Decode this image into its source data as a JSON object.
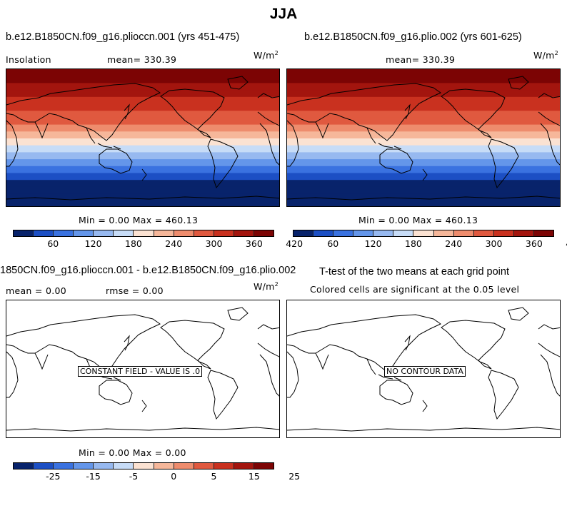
{
  "main_title": "JJA",
  "panels": [
    {
      "title": "b.e12.B1850CN.f09_g16.plioccn.001 (yrs 451-475)",
      "left_label": "Insolation",
      "mean_label": "mean=  330.39",
      "units_base": "W/m",
      "units_exp": "2",
      "stats": "Min =   0.00 Max = 460.13"
    },
    {
      "title": "b.e12.B1850CN.f09_g16.plio.002 (yrs 601-625)",
      "mean_label": "mean=  330.39",
      "units_base": "W/m",
      "units_exp": "2",
      "stats": "Min =   0.00 Max = 460.13"
    },
    {
      "title": "1850CN.f09_g16.plioccn.001 - b.e12.B1850CN.f09_g16.plio.002",
      "mean_label": "mean =   0.00",
      "rmse_label": "rmse =   0.00",
      "units_base": "W/m",
      "units_exp": "2",
      "box_text": "CONSTANT FIELD - VALUE IS .0",
      "stats": "Min =   0.00 Max =   0.00"
    },
    {
      "title": "T-test of the two means at each grid point",
      "subtitle": "Colored cells are significant at the 0.05 level",
      "box_text": "NO CONTOUR DATA"
    }
  ],
  "colorbar_colors": [
    "#08236b",
    "#1c4fc4",
    "#3a72e0",
    "#6496ea",
    "#97b9f0",
    "#c7dcf7",
    "#fbe2d2",
    "#f6b79a",
    "#ee8c6d",
    "#e0593f",
    "#c9311f",
    "#a3150e",
    "#7c0404"
  ],
  "colorbar_top_ticks": [
    "60",
    "120",
    "180",
    "240",
    "300",
    "360",
    "420"
  ],
  "colorbar_bottom_ticks": [
    "-25",
    "-15",
    "-5",
    "0",
    "5",
    "15",
    "25"
  ],
  "insolation_bands": [
    "#7c0404",
    "#7c0404",
    "#a3150e",
    "#a3150e",
    "#c9311f",
    "#c9311f",
    "#e0593f",
    "#e0593f",
    "#ee8c6d",
    "#f6b79a",
    "#fbe2d2",
    "#c7dcf7",
    "#97b9f0",
    "#6496ea",
    "#3a72e0",
    "#1c4fc4",
    "#08236b",
    "#08236b",
    "#08236b",
    "#08236b"
  ]
}
